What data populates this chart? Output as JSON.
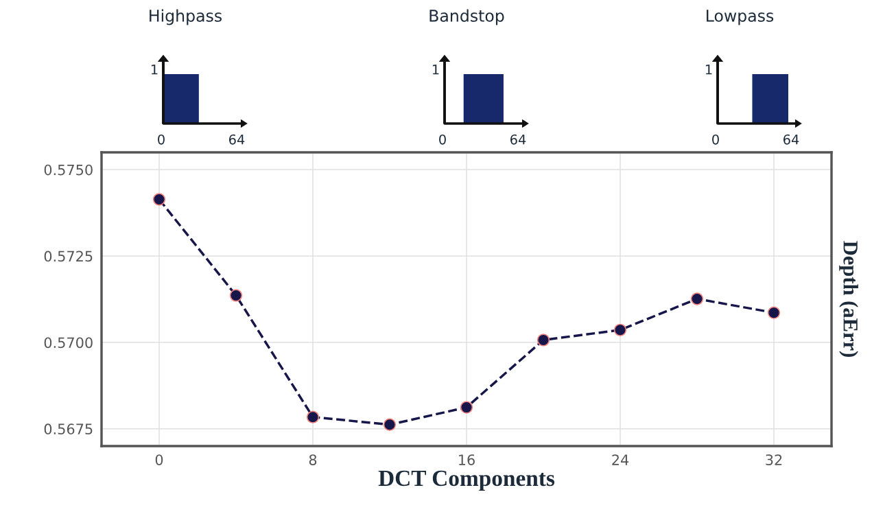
{
  "chart_data": {
    "type": "line",
    "xlabel": "DCT Components",
    "ylabel": "Depth (aErr)",
    "series": [
      {
        "color": "#16164a",
        "x": [
          0,
          4,
          8,
          12,
          16,
          20,
          24,
          28,
          32
        ],
        "values": [
          0.57414,
          0.57136,
          0.56784,
          0.56762,
          0.56812,
          0.57007,
          0.57036,
          0.57126,
          0.57086
        ]
      }
    ],
    "xlim": [
      -3,
      35
    ],
    "xticks": [
      0,
      8,
      16,
      24,
      32
    ],
    "ylim": [
      0.567,
      0.5755
    ],
    "yticks": [
      {
        "value": 0.5675,
        "label": "0.5675"
      },
      {
        "value": 0.57,
        "label": "0.5700"
      },
      {
        "value": 0.5725,
        "label": "0.5725"
      },
      {
        "value": 0.575,
        "label": "0.5750"
      }
    ],
    "grid": true,
    "marker": "circle",
    "line_style": "dashed",
    "annotations": [
      "Highpass",
      "1",
      "0",
      "64",
      "Bandstop",
      "1",
      "0",
      "64",
      "Lowpass",
      "1",
      "0",
      "64"
    ]
  }
}
